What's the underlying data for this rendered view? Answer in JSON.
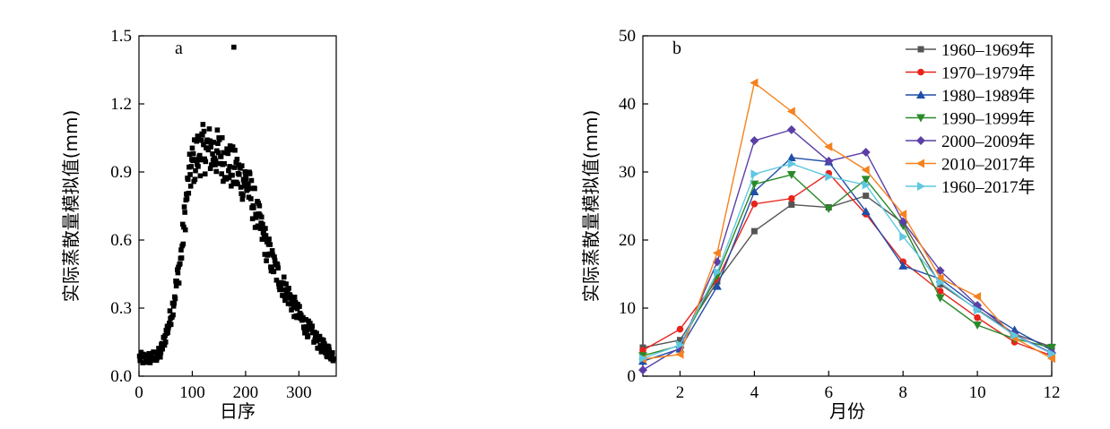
{
  "chart_data": [
    {
      "type": "scatter",
      "panel_label": "a",
      "xlabel": "日序",
      "ylabel": "实际蒸散量模拟值(mm)",
      "xlim": [
        0,
        370
      ],
      "ylim": [
        0,
        1.5
      ],
      "xticks": [
        0,
        100,
        200,
        300
      ],
      "yticks": [
        0.0,
        0.3,
        0.6,
        0.9,
        1.2,
        1.5
      ],
      "ytick_labels": [
        "0.0",
        "0.3",
        "0.6",
        "0.9",
        "1.2",
        "1.5"
      ],
      "point_color": "#000000",
      "anchor_points": [
        [
          1,
          0.08
        ],
        [
          10,
          0.075
        ],
        [
          20,
          0.08
        ],
        [
          30,
          0.085
        ],
        [
          40,
          0.1
        ],
        [
          45,
          0.14
        ],
        [
          50,
          0.18
        ],
        [
          55,
          0.22
        ],
        [
          60,
          0.27
        ],
        [
          65,
          0.33
        ],
        [
          70,
          0.4
        ],
        [
          75,
          0.47
        ],
        [
          80,
          0.55
        ],
        [
          85,
          0.68
        ],
        [
          90,
          0.8
        ],
        [
          95,
          0.88
        ],
        [
          100,
          0.93
        ],
        [
          110,
          0.98
        ],
        [
          120,
          1.0
        ],
        [
          130,
          1.0
        ],
        [
          140,
          0.99
        ],
        [
          150,
          0.98
        ],
        [
          160,
          0.96
        ],
        [
          170,
          0.93
        ],
        [
          180,
          0.9
        ],
        [
          190,
          0.88
        ],
        [
          200,
          0.86
        ],
        [
          210,
          0.8
        ],
        [
          220,
          0.72
        ],
        [
          230,
          0.64
        ],
        [
          240,
          0.57
        ],
        [
          250,
          0.5
        ],
        [
          260,
          0.45
        ],
        [
          270,
          0.4
        ],
        [
          280,
          0.36
        ],
        [
          290,
          0.31
        ],
        [
          300,
          0.27
        ],
        [
          310,
          0.23
        ],
        [
          320,
          0.2
        ],
        [
          330,
          0.17
        ],
        [
          340,
          0.14
        ],
        [
          350,
          0.12
        ],
        [
          360,
          0.1
        ],
        [
          365,
          0.09
        ]
      ],
      "outliers": [
        [
          178,
          1.45
        ]
      ]
    },
    {
      "type": "line",
      "panel_label": "b",
      "xlabel": "月份",
      "ylabel": "实际蒸散量模拟值(mm)",
      "xlim": [
        1,
        12
      ],
      "ylim": [
        0,
        50
      ],
      "xticks": [
        2,
        4,
        6,
        8,
        10,
        12
      ],
      "yticks": [
        0,
        10,
        20,
        30,
        40,
        50
      ],
      "legend_position": "top-right",
      "x": [
        1,
        2,
        3,
        4,
        5,
        6,
        7,
        8,
        9,
        10,
        11,
        12
      ],
      "series": [
        {
          "name": "1960–1969年",
          "color": "#555555",
          "marker": "square",
          "values": [
            4.2,
            5.3,
            13.9,
            21.3,
            25.2,
            24.8,
            26.5,
            22.5,
            13.5,
            9.8,
            6.2,
            4.3
          ]
        },
        {
          "name": "1970–1979年",
          "color": "#e8231b",
          "marker": "circle",
          "values": [
            3.8,
            6.9,
            14.2,
            25.3,
            26.1,
            29.8,
            23.8,
            16.8,
            12.5,
            8.6,
            5.0,
            3.0
          ]
        },
        {
          "name": "1980–1989年",
          "color": "#1f4ea8",
          "marker": "triangle-up",
          "values": [
            2.2,
            4.0,
            13.2,
            27.1,
            32.1,
            31.5,
            24.2,
            16.2,
            14.3,
            10.2,
            6.8,
            3.8
          ]
        },
        {
          "name": "1990–1999年",
          "color": "#2a8a2a",
          "marker": "triangle-down",
          "values": [
            3.0,
            4.5,
            14.8,
            28.2,
            29.6,
            24.6,
            28.9,
            22.1,
            11.5,
            7.5,
            5.5,
            4.2
          ]
        },
        {
          "name": "2000–2009年",
          "color": "#5b3fa6",
          "marker": "diamond",
          "values": [
            0.9,
            4.2,
            16.8,
            34.6,
            36.2,
            31.6,
            32.9,
            22.7,
            15.5,
            10.4,
            6.1,
            3.4
          ]
        },
        {
          "name": "2010–2017年",
          "color": "#f5821f",
          "marker": "triangle-left",
          "values": [
            2.5,
            3.2,
            18.1,
            43.1,
            38.9,
            33.7,
            30.3,
            23.8,
            14.4,
            11.7,
            5.6,
            2.6
          ]
        },
        {
          "name": "1960–2017年",
          "color": "#5fc8e0",
          "marker": "triangle-right",
          "values": [
            2.6,
            4.6,
            15.3,
            29.7,
            31.2,
            29.3,
            28.1,
            20.5,
            13.8,
            9.7,
            6.0,
            3.3
          ]
        }
      ]
    }
  ]
}
